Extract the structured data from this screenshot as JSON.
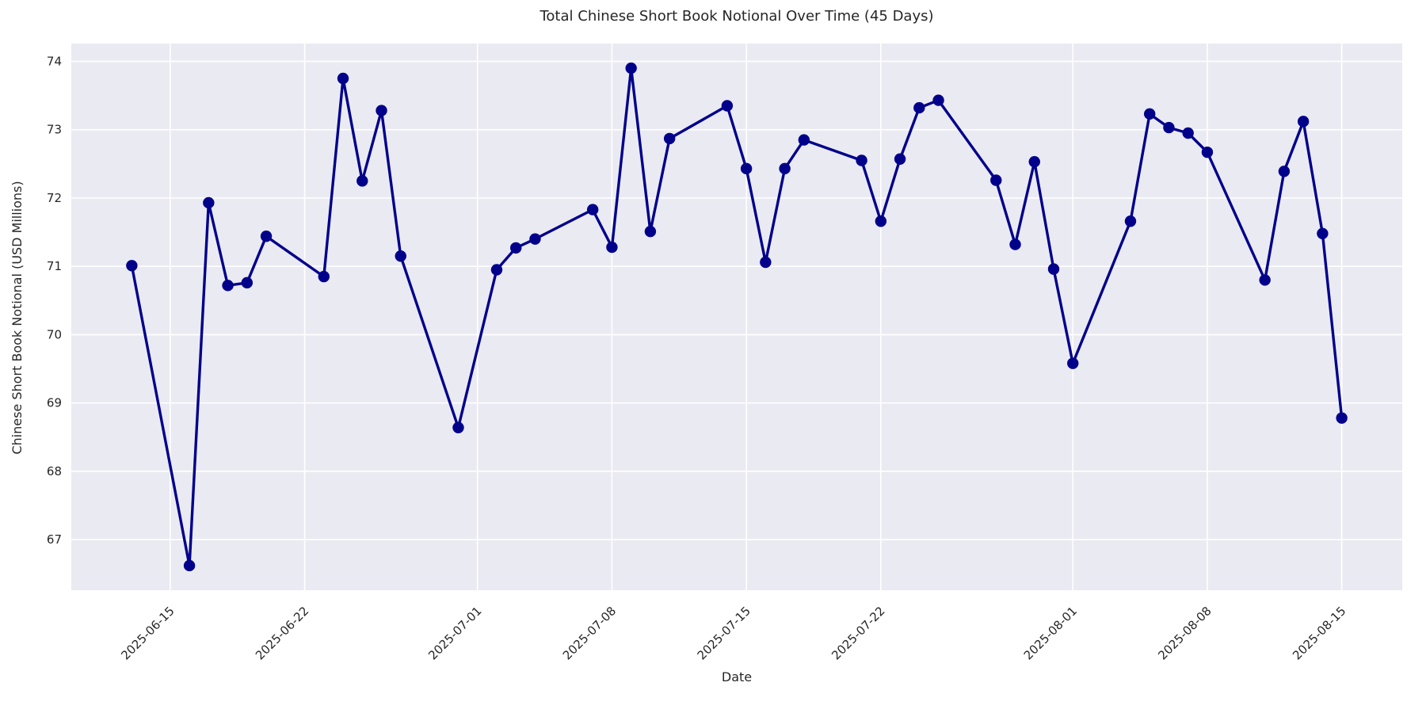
{
  "chart_data": {
    "type": "line",
    "title": "Total Chinese Short Book Notional Over Time (45 Days)",
    "xlabel": "Date",
    "ylabel": "Chinese Short Book Notional (USD Millions)",
    "legend": "none",
    "grid": true,
    "plot_bg_color": "#EAEAF2",
    "grid_color": "#FFFFFF",
    "line_color": "#00008B",
    "text_color": "#262626",
    "marker": "circle",
    "x_tick_rotation_deg": 45,
    "x_ticks": [
      "2025-06-15",
      "2025-06-22",
      "2025-07-01",
      "2025-07-08",
      "2025-07-15",
      "2025-07-22",
      "2025-08-01",
      "2025-08-08",
      "2025-08-15"
    ],
    "y_ticks": [
      67,
      68,
      69,
      70,
      71,
      72,
      73,
      74
    ],
    "ylim": [
      66.26,
      74.26
    ],
    "x_margin_days": 3.15,
    "series": [
      {
        "name": "Total Chinese Short Book Notional",
        "points": [
          [
            "2025-06-13",
            71.01
          ],
          [
            "2025-06-16",
            66.62
          ],
          [
            "2025-06-17",
            71.93
          ],
          [
            "2025-06-18",
            70.72
          ],
          [
            "2025-06-19",
            70.76
          ],
          [
            "2025-06-20",
            71.44
          ],
          [
            "2025-06-23",
            70.85
          ],
          [
            "2025-06-24",
            73.75
          ],
          [
            "2025-06-25",
            72.25
          ],
          [
            "2025-06-26",
            73.28
          ],
          [
            "2025-06-27",
            71.15
          ],
          [
            "2025-06-30",
            68.64
          ],
          [
            "2025-07-02",
            70.95
          ],
          [
            "2025-07-03",
            71.27
          ],
          [
            "2025-07-04",
            71.4
          ],
          [
            "2025-07-07",
            71.83
          ],
          [
            "2025-07-08",
            71.28
          ],
          [
            "2025-07-09",
            73.9
          ],
          [
            "2025-07-10",
            71.51
          ],
          [
            "2025-07-11",
            72.87
          ],
          [
            "2025-07-14",
            73.35
          ],
          [
            "2025-07-15",
            72.43
          ],
          [
            "2025-07-16",
            71.06
          ],
          [
            "2025-07-17",
            72.43
          ],
          [
            "2025-07-18",
            72.85
          ],
          [
            "2025-07-21",
            72.55
          ],
          [
            "2025-07-22",
            71.66
          ],
          [
            "2025-07-23",
            72.57
          ],
          [
            "2025-07-24",
            73.32
          ],
          [
            "2025-07-25",
            73.43
          ],
          [
            "2025-07-28",
            72.26
          ],
          [
            "2025-07-29",
            71.32
          ],
          [
            "2025-07-30",
            72.53
          ],
          [
            "2025-07-31",
            70.96
          ],
          [
            "2025-08-01",
            69.58
          ],
          [
            "2025-08-04",
            71.66
          ],
          [
            "2025-08-05",
            73.23
          ],
          [
            "2025-08-06",
            73.03
          ],
          [
            "2025-08-07",
            72.95
          ],
          [
            "2025-08-08",
            72.67
          ],
          [
            "2025-08-11",
            70.8
          ],
          [
            "2025-08-12",
            72.39
          ],
          [
            "2025-08-13",
            73.12
          ],
          [
            "2025-08-14",
            71.48
          ],
          [
            "2025-08-15",
            68.78
          ]
        ]
      }
    ]
  }
}
